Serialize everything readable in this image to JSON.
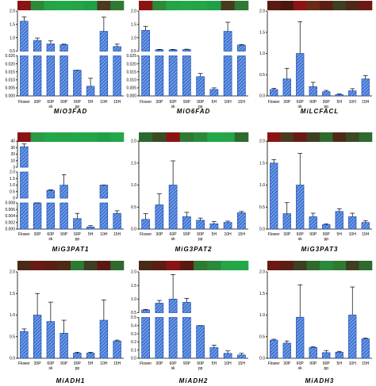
{
  "colors": {
    "bar": "#2f6fd6",
    "bar_stroke": "#1a4fb5",
    "heat_low": "#22a84a",
    "heat_mid": "#2b2b1e",
    "heat_high": "#8a1414"
  },
  "chart_data": [
    {
      "type": "bar",
      "title": "MiO3FAD",
      "categories": [
        "Flower",
        "30P",
        "60P",
        "90P",
        "90P",
        "5H",
        "10H",
        "15H"
      ],
      "sublabels": [
        "",
        "",
        "sk",
        "",
        "pp",
        "",
        "",
        ""
      ],
      "broken_axis": true,
      "segments": [
        {
          "ylim": [
            0.025,
            2.0
          ],
          "ticks": [
            "0.5",
            "1.0",
            "1.5",
            "2.0"
          ]
        },
        {
          "ylim": [
            0,
            0.025
          ],
          "ticks": [
            "0.000",
            "0.005",
            "0.010",
            "0.015",
            "0.020",
            "0.025"
          ]
        }
      ],
      "values": [
        1.5,
        0.55,
        0.38,
        0.34,
        0.016,
        0.006,
        1.0,
        0.25
      ],
      "errors": [
        0.22,
        0.12,
        0.15,
        0.03,
        0.0,
        0.005,
        0.7,
        0.12
      ],
      "heatmap": [
        "#8a1414",
        "#2d8a3a",
        "#25a448",
        "#22a84a",
        "#25a448",
        "#1fa046",
        "#4a3a1e",
        "#2e7a32"
      ]
    },
    {
      "type": "bar",
      "title": "MiO6FAD",
      "categories": [
        "Flower",
        "30P",
        "60P",
        "90P",
        "90P",
        "5H",
        "10H",
        "15H"
      ],
      "sublabels": [
        "",
        "",
        "sk",
        "",
        "pp",
        "",
        "",
        ""
      ],
      "broken_axis": true,
      "segments": [
        {
          "ylim": [
            0.025,
            2.0
          ],
          "ticks": [
            "0.5",
            "1.0",
            "1.5",
            "2.0"
          ]
        },
        {
          "ylim": [
            0,
            0.025
          ],
          "ticks": [
            "0.000",
            "0.005",
            "0.010",
            "0.015",
            "0.020",
            "0.025"
          ]
        }
      ],
      "values": [
        1.05,
        0.09,
        0.09,
        0.1,
        0.012,
        0.004,
        1.0,
        0.32
      ],
      "errors": [
        0.2,
        0.02,
        0.02,
        0.02,
        0.002,
        0.001,
        0.45,
        0.03
      ],
      "heatmap": [
        "#8a1414",
        "#2d8a3a",
        "#25a448",
        "#22a84a",
        "#25a448",
        "#1fa046",
        "#4a3a1e",
        "#2e7a32"
      ]
    },
    {
      "type": "bar",
      "title": "MiLCFACL",
      "categories": [
        "Flower",
        "30P",
        "60P",
        "90P",
        "90P",
        "5H",
        "10H",
        "15H"
      ],
      "sublabels": [
        "",
        "",
        "sk",
        "",
        "pp",
        "",
        "",
        ""
      ],
      "broken_axis": false,
      "ylim": [
        0,
        2.0
      ],
      "ticks": [
        "0.0",
        "0.5",
        "1.0",
        "1.5",
        "2.0"
      ],
      "values": [
        0.15,
        0.4,
        1.0,
        0.22,
        0.1,
        0.03,
        0.12,
        0.4
      ],
      "errors": [
        0.03,
        0.25,
        0.75,
        0.1,
        0.03,
        0.02,
        0.05,
        0.08
      ],
      "heatmap": [
        "#5a1a14",
        "#4a1610",
        "#8a1414",
        "#6a2a18",
        "#5a1e14",
        "#3e3e22",
        "#4e2a16",
        "#6a1a14"
      ]
    },
    {
      "type": "bar",
      "title": "MiG3PAT1",
      "categories": [
        "Flower",
        "30P",
        "60P",
        "90P",
        "90P",
        "5H",
        "10H",
        "15H"
      ],
      "sublabels": [
        "",
        "",
        "sk",
        "",
        "pp",
        "",
        "",
        ""
      ],
      "broken_axis": true,
      "segments": [
        {
          "ylim": [
            3,
            40
          ],
          "ticks": [
            "3",
            "10",
            "20",
            "30",
            "40"
          ]
        },
        {
          "ylim": [
            0.01,
            2
          ],
          "ticks": [
            "0",
            "0.5",
            "1.0",
            "1.5",
            "2.0"
          ]
        },
        {
          "ylim": [
            0,
            0.01
          ],
          "ticks": [
            "0.000",
            "0.002",
            "0.004",
            "0.006",
            "0.008"
          ]
        }
      ],
      "values": [
        32,
        0.01,
        0.6,
        1.0,
        0.004,
        0.0008,
        1.0,
        0.006
      ],
      "errors": [
        4,
        0,
        0.05,
        0.8,
        0.002,
        0.0005,
        0,
        0.001
      ],
      "heatmap": [
        "#8a1414",
        "#2a9a44",
        "#22a84a",
        "#25a448",
        "#22a84a",
        "#25a448",
        "#1fa046",
        "#22a84a"
      ]
    },
    {
      "type": "bar",
      "title": "MiG3PAT2",
      "categories": [
        "Flower",
        "30P",
        "60P",
        "90P",
        "90P",
        "5H",
        "10H",
        "15H"
      ],
      "sublabels": [
        "",
        "",
        "sk",
        "",
        "pp",
        "",
        "",
        ""
      ],
      "broken_axis": false,
      "ylim": [
        0,
        2.0
      ],
      "ticks": [
        "0.0",
        "0.5",
        "1.0",
        "1.5",
        "2.0"
      ],
      "values": [
        0.22,
        0.55,
        1.0,
        0.28,
        0.2,
        0.12,
        0.15,
        0.37
      ],
      "errors": [
        0.13,
        0.25,
        0.55,
        0.1,
        0.05,
        0.05,
        0.03,
        0.03
      ],
      "heatmap": [
        "#2a6a2e",
        "#3a4a22",
        "#8a1414",
        "#2e7a32",
        "#2a8a3a",
        "#22a84a",
        "#25a448",
        "#2e6a2c"
      ]
    },
    {
      "type": "bar",
      "title": "MiG3PAT3",
      "categories": [
        "Flower",
        "30P",
        "60P",
        "90P",
        "90P",
        "5H",
        "10H",
        "15H"
      ],
      "sublabels": [
        "",
        "",
        "sk",
        "",
        "pp",
        "",
        "",
        ""
      ],
      "broken_axis": false,
      "ylim": [
        0,
        2.0
      ],
      "ticks": [
        "0.0",
        "0.5",
        "1.0",
        "1.5",
        "2.0"
      ],
      "values": [
        1.5,
        0.35,
        1.0,
        0.28,
        0.1,
        0.4,
        0.28,
        0.15
      ],
      "errors": [
        0.08,
        0.25,
        0.72,
        0.08,
        0.02,
        0.06,
        0.08,
        0.04
      ],
      "heatmap": [
        "#8a1414",
        "#4a3a1e",
        "#6a1a14",
        "#3e3e22",
        "#2e6a2c",
        "#4e2a16",
        "#3a4a22",
        "#2e6a2c"
      ]
    },
    {
      "type": "bar",
      "title": "MiADH1",
      "categories": [
        "Flower",
        "30P",
        "60P",
        "90P",
        "90P",
        "5H",
        "10H",
        "15H"
      ],
      "sublabels": [
        "",
        "",
        "sk",
        "",
        "pp",
        "",
        "",
        ""
      ],
      "broken_axis": false,
      "ylim": [
        0,
        2.0
      ],
      "ticks": [
        "0.0",
        "0.5",
        "1.0",
        "1.5",
        "2.0"
      ],
      "values": [
        0.62,
        1.0,
        0.85,
        0.58,
        0.12,
        0.12,
        0.88,
        0.4
      ],
      "errors": [
        0.06,
        0.5,
        0.45,
        0.3,
        0.02,
        0.02,
        0.47,
        0.02
      ],
      "heatmap": [
        "#4a2a16",
        "#6a1a14",
        "#5a1e14",
        "#4e2a16",
        "#2e7a32",
        "#3e3e22",
        "#5a1a14",
        "#2e6a2c"
      ]
    },
    {
      "type": "bar",
      "title": "MiADH2",
      "categories": [
        "Flower",
        "30P",
        "60P",
        "90P",
        "90P",
        "5H",
        "10H",
        "15H"
      ],
      "sublabels": [
        "",
        "",
        "sk",
        "",
        "pp",
        "",
        "",
        ""
      ],
      "broken_axis": true,
      "segments": [
        {
          "ylim": [
            0.5,
            2.0
          ],
          "ticks": [
            "0.5",
            "1.0",
            "1.5",
            "2.0"
          ]
        },
        {
          "ylim": [
            0,
            0.5
          ],
          "ticks": [
            "0.0",
            "0.1",
            "0.2",
            "0.3",
            "0.4",
            "0.5"
          ]
        }
      ],
      "values": [
        0.6,
        0.85,
        1.0,
        0.88,
        0.4,
        0.13,
        0.06,
        0.04
      ],
      "errors": [
        0.02,
        0.1,
        0.9,
        0.15,
        0.0,
        0.03,
        0.03,
        0.02
      ],
      "heatmap": [
        "#4a2a16",
        "#5a1e14",
        "#8a1414",
        "#5a1a14",
        "#2e7a32",
        "#2a8a3a",
        "#25a448",
        "#22a84a"
      ]
    },
    {
      "type": "bar",
      "title": "MiADH3",
      "categories": [
        "Flower",
        "30P",
        "60P",
        "90P",
        "90P",
        "5H",
        "10H",
        "15H"
      ],
      "sublabels": [
        "",
        "",
        "sk",
        "",
        "pp",
        "",
        "",
        ""
      ],
      "broken_axis": false,
      "ylim": [
        0,
        2.0
      ],
      "ticks": [
        "0.0",
        "0.5",
        "1.0",
        "1.5",
        "2.0"
      ],
      "values": [
        0.42,
        0.35,
        0.95,
        0.25,
        0.13,
        0.14,
        1.0,
        0.45
      ],
      "errors": [
        0.02,
        0.05,
        0.75,
        0.02,
        0.05,
        0.02,
        0.65,
        0.02
      ],
      "heatmap": [
        "#6a1a14",
        "#5a1e14",
        "#3e3e22",
        "#2e6a2c",
        "#2a8a3a",
        "#2e7a32",
        "#3e3e22",
        "#2e6a2c"
      ]
    }
  ]
}
